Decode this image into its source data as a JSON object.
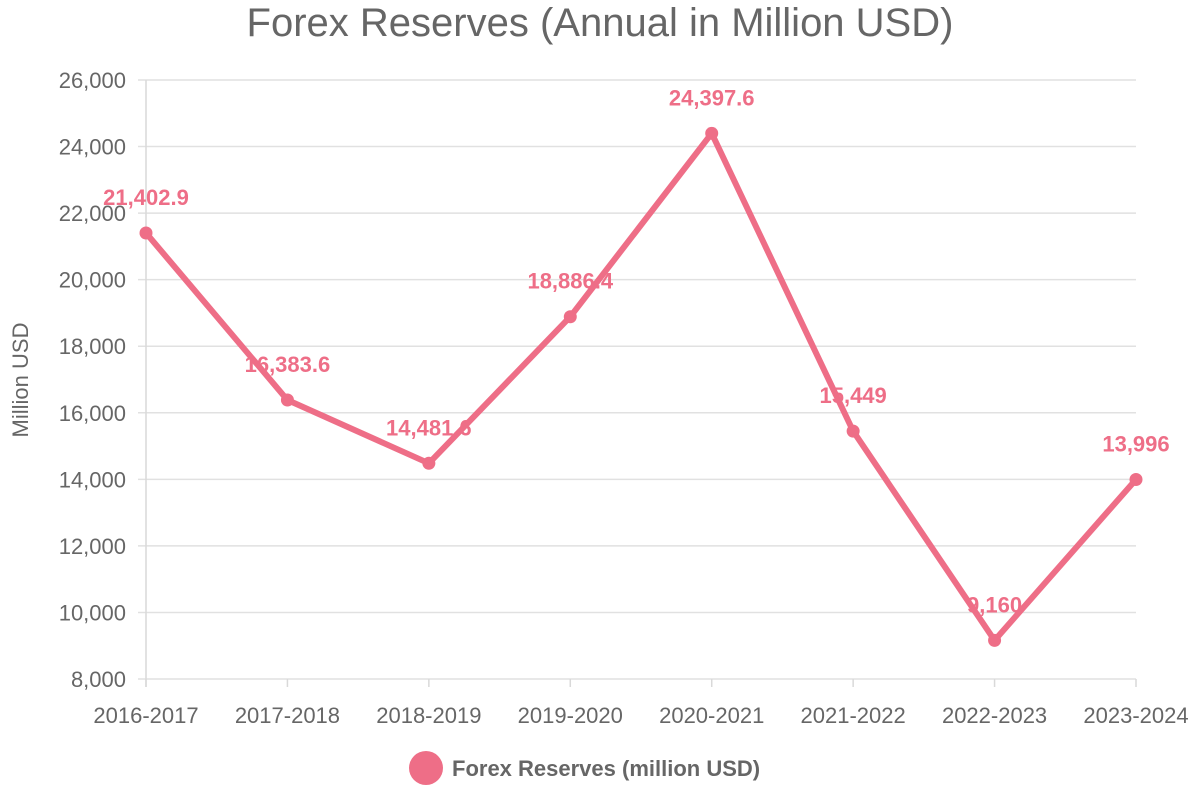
{
  "chart_data": {
    "type": "line",
    "title": "Forex Reserves (Annual in Million USD)",
    "xlabel": "",
    "ylabel": "Million USD",
    "categories": [
      "2016-2017",
      "2017-2018",
      "2018-2019",
      "2019-2020",
      "2020-2021",
      "2021-2022",
      "2022-2023",
      "2023-2024"
    ],
    "series": [
      {
        "name": "Forex Reserves (million USD)",
        "values": [
          21402.9,
          16383.6,
          14481.6,
          18886.4,
          24397.6,
          15449,
          9160,
          13996
        ],
        "labels": [
          "21,402.9",
          "16,383.6",
          "14,481.6",
          "18,886.4",
          "24,397.6",
          "15,449",
          "9,160",
          "13,996"
        ],
        "color": "#ee6e87"
      }
    ],
    "ylim": [
      8000,
      26000
    ],
    "yticks": [
      8000,
      10000,
      12000,
      14000,
      16000,
      18000,
      20000,
      22000,
      24000,
      26000
    ],
    "ytick_labels": [
      "8,000",
      "10,000",
      "12,000",
      "14,000",
      "16,000",
      "18,000",
      "20,000",
      "22,000",
      "24,000",
      "26,000"
    ],
    "grid": true,
    "legend_position": "bottom"
  }
}
